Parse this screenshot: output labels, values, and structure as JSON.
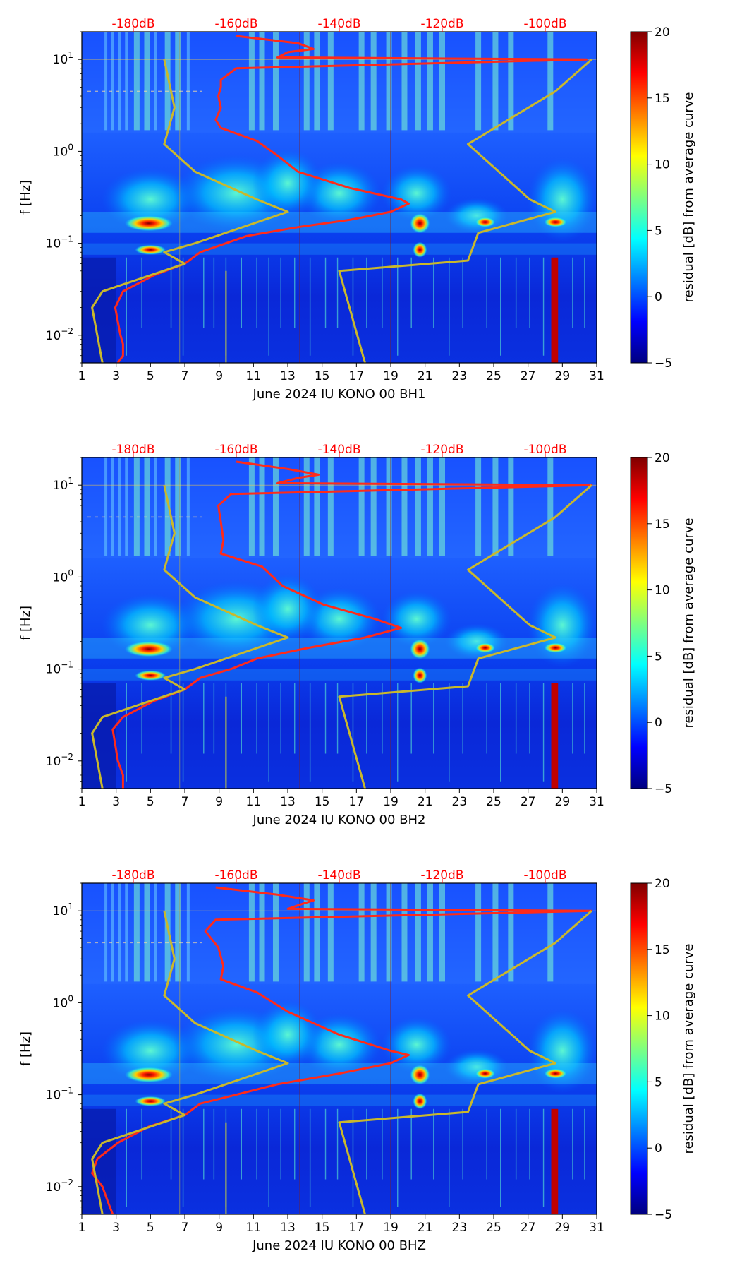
{
  "colors": {
    "top_axis_text": "#ff0000",
    "red_curve": "#ff2a1a",
    "noise_model": "#c9b82c",
    "colormap": [
      "#00007f",
      "#0000ff",
      "#007fff",
      "#00ffff",
      "#7fff7f",
      "#ffff00",
      "#ff7f00",
      "#ff0000",
      "#7f0000"
    ]
  },
  "chart_data": [
    {
      "type": "heatmap",
      "title": "",
      "xlabel": "June 2024 IU KONO 00 BH1",
      "ylabel": "f [Hz]",
      "x_ticks": [
        "1",
        "3",
        "5",
        "7",
        "9",
        "11",
        "13",
        "15",
        "17",
        "19",
        "21",
        "23",
        "25",
        "27",
        "29",
        "31"
      ],
      "y_ticks": [
        {
          "base": "10",
          "exp": "1"
        },
        {
          "base": "10",
          "exp": "0"
        },
        {
          "base": "10",
          "exp": "−1"
        },
        {
          "base": "10",
          "exp": "−2"
        }
      ],
      "top_axis_ticks": [
        "-180dB",
        "-160dB",
        "-140dB",
        "-120dB",
        "-100dB"
      ],
      "xlim": [
        1,
        31
      ],
      "ylim_hz": [
        0.005,
        20
      ],
      "top_db_range": [
        -190,
        -90
      ],
      "colorbar": {
        "label": "residual [dB] from average curve",
        "ticks": [
          "20",
          "15",
          "10",
          "5",
          "0",
          "−5"
        ],
        "range": [
          -5,
          20
        ]
      },
      "series": [
        {
          "name": "average PSD curve",
          "color": "red",
          "points": [
            [
              0.005,
              -183
            ],
            [
              0.006,
              -182
            ],
            [
              0.008,
              -182
            ],
            [
              0.01,
              -182.5
            ],
            [
              0.014,
              -183
            ],
            [
              0.02,
              -183.5
            ],
            [
              0.03,
              -182
            ],
            [
              0.045,
              -176
            ],
            [
              0.06,
              -170
            ],
            [
              0.08,
              -167
            ],
            [
              0.1,
              -162
            ],
            [
              0.12,
              -158
            ],
            [
              0.15,
              -148
            ],
            [
              0.18,
              -138
            ],
            [
              0.22,
              -130
            ],
            [
              0.27,
              -126.5
            ],
            [
              0.3,
              -128
            ],
            [
              0.4,
              -138
            ],
            [
              0.6,
              -148
            ],
            [
              0.9,
              -152
            ],
            [
              1.3,
              -156
            ],
            [
              1.8,
              -163
            ],
            [
              2.2,
              -164
            ],
            [
              3,
              -163
            ],
            [
              4,
              -163.5
            ],
            [
              5,
              -163
            ],
            [
              6,
              -163
            ],
            [
              8,
              -160
            ],
            [
              10,
              -92
            ],
            [
              10.5,
              -152
            ],
            [
              12,
              -150
            ],
            [
              13,
              -145
            ],
            [
              15,
              -148
            ],
            [
              18,
              -160
            ]
          ]
        },
        {
          "name": "NLNM",
          "color": "yellow",
          "points": [
            [
              0.005,
              -186
            ],
            [
              0.01,
              -187
            ],
            [
              0.02,
              -188
            ],
            [
              0.03,
              -186
            ],
            [
              0.06,
              -170
            ],
            [
              0.08,
              -174
            ],
            [
              0.1,
              -168
            ],
            [
              0.22,
              -150
            ],
            [
              0.3,
              -156
            ],
            [
              0.6,
              -168
            ],
            [
              1.2,
              -174
            ],
            [
              3,
              -172
            ],
            [
              10,
              -174
            ]
          ]
        },
        {
          "name": "NHNM",
          "color": "yellow",
          "points": [
            [
              0.005,
              -135
            ],
            [
              0.05,
              -140
            ],
            [
              0.065,
              -115
            ],
            [
              0.13,
              -113
            ],
            [
              0.22,
              -98
            ],
            [
              0.3,
              -103
            ],
            [
              1.2,
              -115
            ],
            [
              4.5,
              -98
            ],
            [
              10,
              -91
            ]
          ]
        }
      ]
    },
    {
      "type": "heatmap",
      "title": "",
      "xlabel": "June 2024 IU KONO 00 BH2",
      "ylabel": "f [Hz]",
      "x_ticks": [
        "1",
        "3",
        "5",
        "7",
        "9",
        "11",
        "13",
        "15",
        "17",
        "19",
        "21",
        "23",
        "25",
        "27",
        "29",
        "31"
      ],
      "y_ticks": [
        {
          "base": "10",
          "exp": "1"
        },
        {
          "base": "10",
          "exp": "0"
        },
        {
          "base": "10",
          "exp": "−1"
        },
        {
          "base": "10",
          "exp": "−2"
        }
      ],
      "top_axis_ticks": [
        "-180dB",
        "-160dB",
        "-140dB",
        "-120dB",
        "-100dB"
      ],
      "xlim": [
        1,
        31
      ],
      "ylim_hz": [
        0.005,
        20
      ],
      "top_db_range": [
        -190,
        -90
      ],
      "colorbar": {
        "label": "residual [dB] from average curve",
        "ticks": [
          "20",
          "15",
          "10",
          "5",
          "0",
          "−5"
        ],
        "range": [
          -5,
          20
        ]
      },
      "series": [
        {
          "name": "average PSD curve",
          "color": "red",
          "points": [
            [
              0.005,
              -182
            ],
            [
              0.007,
              -182
            ],
            [
              0.01,
              -183
            ],
            [
              0.015,
              -183.5
            ],
            [
              0.022,
              -184
            ],
            [
              0.03,
              -182
            ],
            [
              0.045,
              -176
            ],
            [
              0.06,
              -170
            ],
            [
              0.08,
              -167
            ],
            [
              0.1,
              -161
            ],
            [
              0.13,
              -156
            ],
            [
              0.17,
              -146
            ],
            [
              0.22,
              -135
            ],
            [
              0.28,
              -128
            ],
            [
              0.35,
              -133
            ],
            [
              0.5,
              -143
            ],
            [
              0.8,
              -151
            ],
            [
              1.3,
              -155
            ],
            [
              1.8,
              -163
            ],
            [
              2.5,
              -162.5
            ],
            [
              4,
              -163
            ],
            [
              6,
              -163.5
            ],
            [
              8,
              -161
            ],
            [
              10,
              -91
            ],
            [
              10.5,
              -152
            ],
            [
              12,
              -148
            ],
            [
              13,
              -144
            ],
            [
              15,
              -150
            ],
            [
              18,
              -160
            ]
          ]
        },
        {
          "name": "NLNM",
          "color": "yellow",
          "points": [
            [
              0.005,
              -186
            ],
            [
              0.01,
              -187
            ],
            [
              0.02,
              -188
            ],
            [
              0.03,
              -186
            ],
            [
              0.06,
              -170
            ],
            [
              0.08,
              -174
            ],
            [
              0.1,
              -168
            ],
            [
              0.22,
              -150
            ],
            [
              0.3,
              -156
            ],
            [
              0.6,
              -168
            ],
            [
              1.2,
              -174
            ],
            [
              3,
              -172
            ],
            [
              10,
              -174
            ]
          ]
        },
        {
          "name": "NHNM",
          "color": "yellow",
          "points": [
            [
              0.005,
              -135
            ],
            [
              0.05,
              -140
            ],
            [
              0.065,
              -115
            ],
            [
              0.13,
              -113
            ],
            [
              0.22,
              -98
            ],
            [
              0.3,
              -103
            ],
            [
              1.2,
              -115
            ],
            [
              4.5,
              -98
            ],
            [
              10,
              -91
            ]
          ]
        }
      ]
    },
    {
      "type": "heatmap",
      "title": "",
      "xlabel": "June 2024 IU KONO 00 BHZ",
      "ylabel": "f [Hz]",
      "x_ticks": [
        "1",
        "3",
        "5",
        "7",
        "9",
        "11",
        "13",
        "15",
        "17",
        "19",
        "21",
        "23",
        "25",
        "27",
        "29",
        "31"
      ],
      "y_ticks": [
        {
          "base": "10",
          "exp": "1"
        },
        {
          "base": "10",
          "exp": "0"
        },
        {
          "base": "10",
          "exp": "−1"
        },
        {
          "base": "10",
          "exp": "−2"
        }
      ],
      "top_axis_ticks": [
        "-180dB",
        "-160dB",
        "-140dB",
        "-120dB",
        "-100dB"
      ],
      "xlim": [
        1,
        31
      ],
      "ylim_hz": [
        0.005,
        20
      ],
      "top_db_range": [
        -190,
        -90
      ],
      "colorbar": {
        "label": "residual [dB] from average curve",
        "ticks": [
          "20",
          "15",
          "10",
          "5",
          "0",
          "−5"
        ],
        "range": [
          -5,
          20
        ]
      },
      "series": [
        {
          "name": "average PSD curve",
          "color": "red",
          "points": [
            [
              0.005,
              -184
            ],
            [
              0.007,
              -185
            ],
            [
              0.01,
              -186
            ],
            [
              0.014,
              -188
            ],
            [
              0.02,
              -187
            ],
            [
              0.03,
              -183
            ],
            [
              0.045,
              -177
            ],
            [
              0.06,
              -170
            ],
            [
              0.08,
              -167
            ],
            [
              0.1,
              -160
            ],
            [
              0.13,
              -152
            ],
            [
              0.17,
              -140
            ],
            [
              0.22,
              -130
            ],
            [
              0.27,
              -126.5
            ],
            [
              0.3,
              -130
            ],
            [
              0.45,
              -140
            ],
            [
              0.8,
              -150
            ],
            [
              1.3,
              -156
            ],
            [
              1.8,
              -163
            ],
            [
              2.5,
              -162.5
            ],
            [
              4,
              -163.5
            ],
            [
              6,
              -166
            ],
            [
              8,
              -164
            ],
            [
              10,
              -91
            ],
            [
              10.5,
              -150
            ],
            [
              12,
              -147
            ],
            [
              13,
              -145
            ],
            [
              15,
              -152
            ],
            [
              18,
              -164
            ]
          ]
        },
        {
          "name": "NLNM",
          "color": "yellow",
          "points": [
            [
              0.005,
              -186
            ],
            [
              0.01,
              -187
            ],
            [
              0.02,
              -188
            ],
            [
              0.03,
              -186
            ],
            [
              0.06,
              -170
            ],
            [
              0.08,
              -174
            ],
            [
              0.1,
              -168
            ],
            [
              0.22,
              -150
            ],
            [
              0.3,
              -156
            ],
            [
              0.6,
              -168
            ],
            [
              1.2,
              -174
            ],
            [
              3,
              -172
            ],
            [
              10,
              -174
            ]
          ]
        },
        {
          "name": "NHNM",
          "color": "yellow",
          "points": [
            [
              0.005,
              -135
            ],
            [
              0.05,
              -140
            ],
            [
              0.065,
              -115
            ],
            [
              0.13,
              -113
            ],
            [
              0.22,
              -98
            ],
            [
              0.3,
              -103
            ],
            [
              1.2,
              -115
            ],
            [
              4.5,
              -98
            ],
            [
              10,
              -91
            ]
          ]
        }
      ]
    }
  ]
}
